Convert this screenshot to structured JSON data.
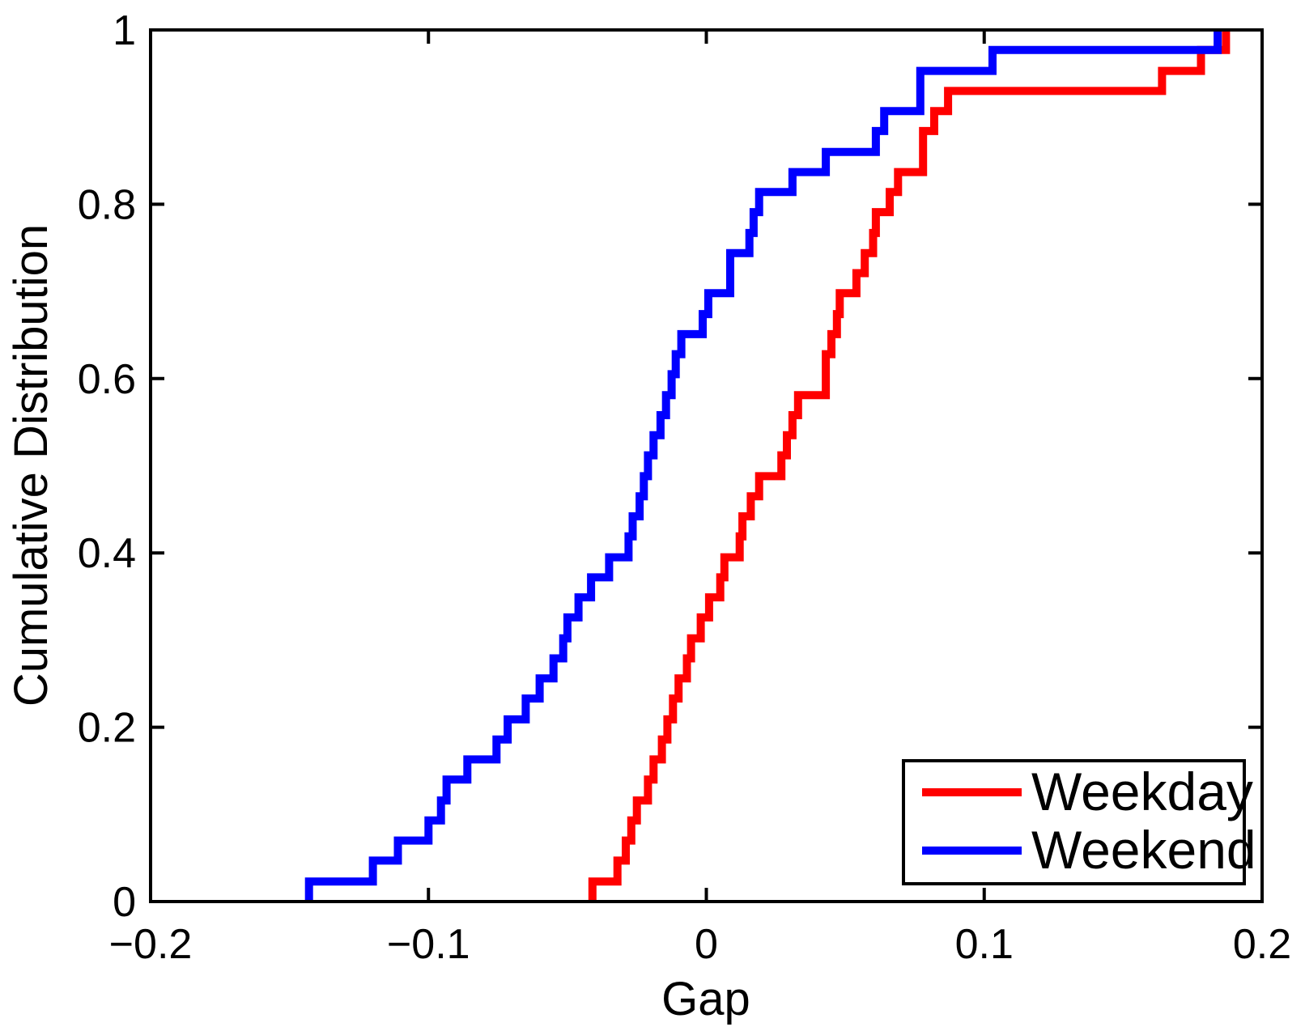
{
  "chart_data": {
    "type": "line",
    "subtype": "step-ecdf",
    "title": "",
    "xlabel": "Gap",
    "ylabel": "Cumulative Distribution",
    "xlim": [
      -0.2,
      0.2
    ],
    "ylim": [
      0,
      1
    ],
    "grid": false,
    "background": "#ffffff",
    "axis_color": "#000000",
    "legend_position": "bottom-right",
    "x_ticks": {
      "values": [
        -0.2,
        -0.1,
        0,
        0.1,
        0.2
      ],
      "labels": [
        "−0.2",
        "−0.1",
        "0",
        "0.1",
        "0.2"
      ]
    },
    "y_ticks": {
      "values": [
        0,
        0.2,
        0.4,
        0.6,
        0.8,
        1
      ],
      "labels": [
        "0",
        "0.2",
        "0.4",
        "0.6",
        "0.8",
        "1"
      ]
    },
    "series": [
      {
        "name": "Weekday",
        "color": "#ff0000",
        "description": "Empirical CDF of Gap on weekdays; steps rise at each x from CDF 0 to 1",
        "step_points": [
          [
            -0.041,
            0.023
          ],
          [
            -0.032,
            0.047
          ],
          [
            -0.029,
            0.07
          ],
          [
            -0.027,
            0.093
          ],
          [
            -0.025,
            0.116
          ],
          [
            -0.021,
            0.14
          ],
          [
            -0.019,
            0.163
          ],
          [
            -0.016,
            0.186
          ],
          [
            -0.014,
            0.209
          ],
          [
            -0.012,
            0.233
          ],
          [
            -0.01,
            0.256
          ],
          [
            -0.007,
            0.279
          ],
          [
            -0.0055,
            0.302
          ],
          [
            -0.002,
            0.326
          ],
          [
            0.001,
            0.349
          ],
          [
            0.005,
            0.372
          ],
          [
            0.0065,
            0.395
          ],
          [
            0.012,
            0.419
          ],
          [
            0.013,
            0.442
          ],
          [
            0.016,
            0.465
          ],
          [
            0.019,
            0.488
          ],
          [
            0.027,
            0.512
          ],
          [
            0.029,
            0.535
          ],
          [
            0.031,
            0.558
          ],
          [
            0.033,
            0.581
          ],
          [
            0.043,
            0.628
          ],
          [
            0.045,
            0.651
          ],
          [
            0.047,
            0.674
          ],
          [
            0.048,
            0.698
          ],
          [
            0.054,
            0.721
          ],
          [
            0.057,
            0.744
          ],
          [
            0.06,
            0.767
          ],
          [
            0.061,
            0.791
          ],
          [
            0.066,
            0.814
          ],
          [
            0.069,
            0.837
          ],
          [
            0.078,
            0.884
          ],
          [
            0.082,
            0.907
          ],
          [
            0.087,
            0.93
          ],
          [
            0.164,
            0.953
          ],
          [
            0.178,
            0.977
          ],
          [
            0.187,
            1.0
          ]
        ]
      },
      {
        "name": "Weekend",
        "color": "#0000ff",
        "description": "Empirical CDF of Gap on weekends; steps rise at each x from CDF 0 to 1",
        "step_points": [
          [
            -0.143,
            0.023
          ],
          [
            -0.12,
            0.047
          ],
          [
            -0.111,
            0.07
          ],
          [
            -0.1,
            0.093
          ],
          [
            -0.0955,
            0.116
          ],
          [
            -0.0935,
            0.14
          ],
          [
            -0.086,
            0.163
          ],
          [
            -0.0755,
            0.186
          ],
          [
            -0.0715,
            0.209
          ],
          [
            -0.065,
            0.233
          ],
          [
            -0.06,
            0.256
          ],
          [
            -0.055,
            0.279
          ],
          [
            -0.0515,
            0.302
          ],
          [
            -0.05,
            0.326
          ],
          [
            -0.046,
            0.349
          ],
          [
            -0.0415,
            0.372
          ],
          [
            -0.035,
            0.395
          ],
          [
            -0.028,
            0.419
          ],
          [
            -0.0265,
            0.442
          ],
          [
            -0.024,
            0.465
          ],
          [
            -0.0225,
            0.488
          ],
          [
            -0.021,
            0.512
          ],
          [
            -0.019,
            0.535
          ],
          [
            -0.0165,
            0.558
          ],
          [
            -0.0145,
            0.581
          ],
          [
            -0.0125,
            0.605
          ],
          [
            -0.011,
            0.628
          ],
          [
            -0.009,
            0.651
          ],
          [
            -0.0013,
            0.674
          ],
          [
            0.0007,
            0.698
          ],
          [
            0.0086,
            0.744
          ],
          [
            0.0155,
            0.767
          ],
          [
            0.017,
            0.791
          ],
          [
            0.019,
            0.814
          ],
          [
            0.031,
            0.837
          ],
          [
            0.043,
            0.86
          ],
          [
            0.061,
            0.884
          ],
          [
            0.064,
            0.907
          ],
          [
            0.077,
            0.953
          ],
          [
            0.103,
            0.977
          ],
          [
            0.184,
            1.0
          ]
        ]
      }
    ]
  }
}
